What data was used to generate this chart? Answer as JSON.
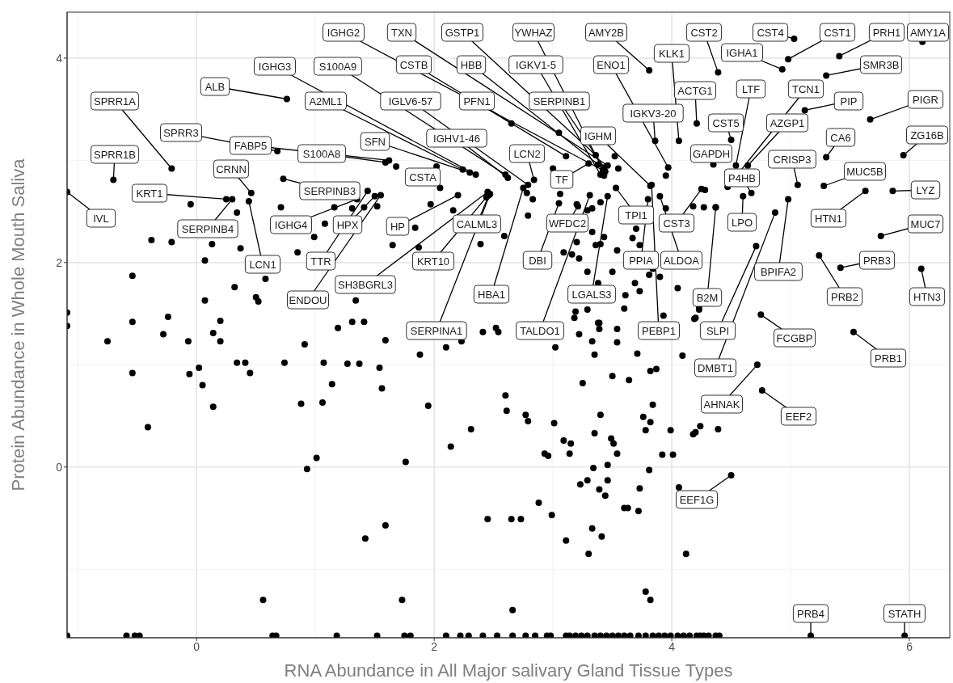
{
  "chart_data": {
    "type": "scatter",
    "xlabel": "RNA Abundance in All Major salivary Gland Tissue Types",
    "ylabel": "Protein Abundance in Whole Mouth Saliva",
    "xlim": [
      -1.09,
      6.34
    ],
    "xticks": [
      0,
      2,
      4,
      6
    ],
    "ylim": [
      -1.67,
      4.45
    ],
    "yticks": [
      0,
      2,
      4
    ],
    "grid": true,
    "marker": "circle",
    "series": [
      {
        "color": "#000000",
        "x": [
          -0.21,
          -0.7,
          -1.09,
          0.76,
          0.68,
          0.25,
          0.3,
          0.46,
          0.44,
          0.73,
          1.62,
          1.59,
          1.35,
          1.5,
          1.44,
          1.55,
          3.44,
          3.46,
          3.36,
          3.42,
          3.81,
          4.39,
          5.03,
          4.98,
          5.41,
          6.11,
          2.35,
          2.6,
          3.11,
          3.38,
          3.4,
          3.97,
          4.06,
          4.93,
          5.3,
          2.24,
          2.79,
          2.65,
          3.43,
          3.86,
          4.21,
          4.54,
          4.47,
          5.12,
          5.67,
          2.3,
          2.62,
          2.84,
          3.82,
          4.5,
          4.64,
          5.3,
          5.95,
          4.35,
          2.02,
          5.06,
          5.28,
          3.3,
          4.67,
          2.2,
          2.46,
          3.21,
          3.53,
          4.25,
          4.6,
          5.63,
          5.86,
          5.76,
          2.44,
          3.05,
          3.8,
          3.9,
          4.98,
          5.42,
          2.45,
          2.75,
          3.46,
          4.37,
          5.24,
          6.1,
          2.47,
          3.31,
          3.83,
          4.71,
          4.75,
          5.53,
          4.87,
          4.72,
          4.76,
          4.5,
          5.17,
          5.96
        ],
        "values": [
          2.92,
          2.81,
          2.69,
          3.6,
          3.09,
          2.62,
          2.62,
          2.68,
          2.6,
          2.82,
          3.0,
          2.98,
          2.62,
          2.65,
          2.7,
          2.66,
          2.89,
          2.95,
          3.05,
          2.91,
          3.88,
          3.86,
          4.19,
          3.99,
          4.02,
          4.16,
          2.86,
          2.86,
          3.04,
          2.96,
          2.86,
          2.93,
          3.19,
          3.89,
          3.83,
          2.91,
          2.76,
          3.36,
          2.93,
          3.19,
          3.36,
          2.95,
          2.74,
          3.49,
          3.4,
          2.88,
          2.83,
          2.81,
          2.75,
          3.2,
          2.95,
          3.03,
          3.05,
          2.96,
          2.94,
          2.76,
          2.75,
          2.97,
          2.68,
          2.66,
          2.66,
          2.55,
          2.73,
          2.72,
          2.65,
          2.7,
          2.7,
          2.26,
          2.64,
          2.58,
          2.62,
          2.65,
          2.62,
          1.95,
          2.69,
          2.73,
          2.65,
          2.54,
          2.07,
          1.94,
          2.67,
          2.66,
          2.76,
          2.16,
          1.49,
          1.32,
          2.49,
          1.0,
          0.75,
          -0.08,
          -1.65,
          -1.65
        ]
      },
      {
        "color": "#000000",
        "x": [
          -1.09,
          -1.09,
          -0.75,
          -0.54,
          -0.54,
          -0.41,
          -0.24,
          -0.28,
          -0.07,
          -0.06,
          0.02,
          0.05,
          0.14,
          0.2,
          0.2,
          0.14,
          0.34,
          0.41,
          0.45,
          0.74,
          0.91,
          0.88,
          1.07,
          1.06,
          1.14,
          1.01,
          0.93,
          1.19,
          1.31,
          1.41,
          1.27,
          1.37,
          1.54,
          1.56,
          1.59,
          1.59,
          1.42,
          0.56
        ],
        "values": [
          1.51,
          1.38,
          1.23,
          1.42,
          0.92,
          0.39,
          1.47,
          1.3,
          1.23,
          0.91,
          0.97,
          0.8,
          1.31,
          1.43,
          1.23,
          0.59,
          1.02,
          1.02,
          0.92,
          1.02,
          1.2,
          0.62,
          1.02,
          0.63,
          0.81,
          0.09,
          -0.02,
          1.36,
          1.42,
          1.42,
          1.01,
          1.01,
          0.97,
          0.77,
          1.24,
          -0.57,
          -0.7,
          -1.3
        ]
      },
      {
        "color": "#000000",
        "x": [
          -1.09,
          -0.59,
          -0.52,
          -0.48,
          0.64,
          0.67,
          1.18,
          1.52,
          1.75,
          1.8,
          2.1,
          2.22,
          2.29,
          2.41,
          2.53,
          2.66,
          2.77,
          2.85,
          2.95,
          2.98,
          3.11,
          3.14,
          3.19,
          3.24,
          3.29,
          3.35,
          3.4,
          3.45,
          3.5,
          3.55,
          3.6,
          3.65,
          3.72,
          3.78,
          3.84,
          3.89,
          3.94,
          3.99,
          4.05,
          4.1,
          4.15,
          4.21,
          4.27,
          4.31,
          4.37,
          4.4,
          4.24
        ],
        "values": [
          -1.65,
          -1.65,
          -1.65,
          -1.65,
          -1.65,
          -1.65,
          -1.65,
          -1.65,
          -1.65,
          -1.65,
          -1.65,
          -1.65,
          -1.65,
          -1.65,
          -1.65,
          -1.65,
          -1.65,
          -1.65,
          -1.65,
          -1.65,
          -1.65,
          -1.65,
          -1.65,
          -1.65,
          -1.65,
          -1.65,
          -1.65,
          -1.65,
          -1.65,
          -1.65,
          -1.65,
          -1.65,
          -1.65,
          -1.65,
          -1.65,
          -1.65,
          -1.65,
          -1.65,
          -1.65,
          -1.65,
          -1.65,
          -1.65,
          -1.65,
          -1.65,
          -1.65,
          -1.65,
          -1.65
        ]
      },
      {
        "color": "#000000",
        "x": [
          1.88,
          2.1,
          1.95,
          1.76,
          1.73,
          2.14,
          2.31,
          2.6,
          2.61,
          2.77,
          2.79,
          2.66,
          2.45,
          2.65,
          2.73,
          2.88,
          2.99,
          3.01,
          2.93,
          2.96,
          3.09,
          3.15,
          3.14,
          3.02,
          3.22,
          3.25,
          3.33,
          3.35,
          3.39,
          3.39,
          3.54,
          3.54,
          3.19,
          3.29,
          3.6,
          2.41,
          2.52,
          2.54,
          2.23,
          3.5,
          3.64,
          3.4,
          3.35,
          3.49,
          3.51,
          3.54,
          3.46,
          3.34,
          3.29,
          3.23,
          3.46,
          3.39,
          3.44,
          3.11,
          3.3,
          3.33,
          3.41,
          3.6,
          3.63,
          3.72,
          3.73,
          3.81,
          3.92,
          4.01,
          3.99,
          3.78,
          3.82,
          3.76,
          3.84,
          3.82,
          3.87,
          3.71,
          4.09,
          4.19,
          4.23,
          3.93,
          4.18,
          4.24,
          4.06,
          4.12,
          3.78,
          3.82
        ],
        "values": [
          1.1,
          1.17,
          0.6,
          0.05,
          -1.3,
          0.2,
          0.37,
          0.7,
          0.55,
          0.51,
          0.45,
          -1.4,
          -0.51,
          -0.51,
          -0.51,
          -0.35,
          -0.47,
          0.43,
          0.13,
          0.11,
          0.26,
          0.23,
          0.13,
          1.17,
          1.3,
          0.82,
          1.23,
          1.1,
          1.41,
          1.35,
          1.35,
          1.22,
          1.52,
          1.54,
          1.55,
          1.32,
          1.36,
          1.32,
          1.23,
          0.89,
          0.85,
          0.51,
          0.33,
          0.28,
          0.23,
          0.13,
          0.02,
          -0.01,
          -0.13,
          -0.17,
          -0.13,
          -0.22,
          -0.28,
          -0.72,
          -0.85,
          -0.6,
          -0.68,
          -0.4,
          -0.4,
          -0.43,
          -0.21,
          -0.03,
          0.12,
          0.12,
          0.36,
          0.36,
          0.44,
          0.49,
          0.61,
          0.94,
          0.96,
          1.11,
          1.09,
          1.45,
          1.54,
          1.48,
          0.32,
          0.4,
          -0.2,
          -0.85,
          -1.22,
          -1.3
        ]
      },
      {
        "color": "#000000",
        "x": [
          3.05,
          3.0,
          2.78,
          2.83,
          2.79,
          1.68,
          2.05,
          2.16,
          1.97,
          1.84,
          1.65,
          1.87,
          2.39,
          2.59,
          3.06,
          3.2,
          3.29,
          3.33,
          3.4,
          3.43,
          3.52,
          3.55,
          3.7,
          3.67,
          3.73,
          3.54,
          3.43,
          3.4,
          3.36,
          3.33,
          3.2,
          3.16,
          3.09,
          3.22,
          3.29,
          3.38,
          3.5,
          3.61,
          3.69,
          3.73,
          3.81,
          3.84,
          3.9,
          4.05,
          4.23,
          4.27,
          4.18,
          3.95,
          3.95,
          3.38,
          3.18,
          -0.05,
          0.34,
          -0.38,
          -0.21,
          0.13,
          0.37,
          0.07,
          -0.54,
          0.32,
          0.58,
          0.07,
          0.5,
          0.52,
          0.71,
          0.85,
          0.99,
          1.08,
          1.16,
          1.31,
          1.41,
          1.52,
          1.34,
          4.28,
          4.37,
          4.2,
          4.39,
          4.2
        ],
        "values": [
          3.27,
          2.92,
          2.68,
          2.62,
          2.46,
          2.94,
          2.73,
          2.51,
          2.57,
          2.34,
          2.17,
          2.15,
          2.18,
          2.26,
          2.67,
          2.57,
          2.51,
          2.53,
          2.59,
          2.85,
          3.04,
          2.92,
          2.33,
          2.24,
          2.17,
          2.12,
          2.25,
          2.18,
          2.17,
          2.3,
          2.2,
          2.08,
          2.1,
          2.04,
          1.91,
          1.8,
          1.91,
          1.68,
          1.8,
          1.72,
          1.88,
          1.94,
          1.86,
          1.75,
          1.57,
          2.54,
          2.55,
          2.53,
          2.85,
          1.41,
          1.46,
          2.57,
          2.49,
          2.22,
          2.2,
          2.18,
          2.14,
          2.02,
          1.87,
          1.76,
          1.84,
          1.63,
          1.66,
          1.62,
          2.54,
          2.1,
          2.25,
          2.38,
          2.54,
          2.53,
          2.54,
          2.55,
          1.63,
          2.71,
          2.54,
          1.46,
          0.37,
          0.34
        ]
      }
    ],
    "annotations": [
      {
        "text": "SPRR1A",
        "x": -0.21,
        "y": 2.92
      },
      {
        "text": "SPRR1B",
        "x": -0.7,
        "y": 2.81
      },
      {
        "text": "IVL",
        "x": -1.09,
        "y": 2.69
      },
      {
        "text": "ALB",
        "x": 0.76,
        "y": 3.6
      },
      {
        "text": "SPRR3",
        "x": 0.68,
        "y": 3.09
      },
      {
        "text": "KRT1",
        "x": 0.25,
        "y": 2.62
      },
      {
        "text": "SERPINB4",
        "x": 0.3,
        "y": 2.62
      },
      {
        "text": "CRNN",
        "x": 0.46,
        "y": 2.68
      },
      {
        "text": "LCN1",
        "x": 0.44,
        "y": 2.6
      },
      {
        "text": "SERPINB3",
        "x": 0.73,
        "y": 2.82
      },
      {
        "text": "FABP5",
        "x": 1.62,
        "y": 3.0
      },
      {
        "text": "S100A8",
        "x": 1.59,
        "y": 2.98
      },
      {
        "text": "IGHG4",
        "x": 1.35,
        "y": 2.62
      },
      {
        "text": "HPX",
        "x": 1.5,
        "y": 2.65
      },
      {
        "text": "TTR",
        "x": 1.44,
        "y": 2.7
      },
      {
        "text": "ENDOU",
        "x": 1.55,
        "y": 2.66
      },
      {
        "text": "IGHG2",
        "x": 3.44,
        "y": 2.89
      },
      {
        "text": "TXN",
        "x": 3.46,
        "y": 2.95
      },
      {
        "text": "GSTP1",
        "x": 3.36,
        "y": 3.05
      },
      {
        "text": "YWHAZ",
        "x": 3.42,
        "y": 2.91
      },
      {
        "text": "AMY2B",
        "x": 3.81,
        "y": 3.88
      },
      {
        "text": "CST2",
        "x": 4.39,
        "y": 3.86
      },
      {
        "text": "CST4",
        "x": 5.03,
        "y": 4.19
      },
      {
        "text": "CST1",
        "x": 4.98,
        "y": 3.99
      },
      {
        "text": "PRH1",
        "x": 5.41,
        "y": 4.02
      },
      {
        "text": "AMY1A",
        "x": 6.11,
        "y": 4.16
      },
      {
        "text": "IGHG3",
        "x": 2.35,
        "y": 2.86
      },
      {
        "text": "S100A9",
        "x": 2.6,
        "y": 2.86
      },
      {
        "text": "CSTB",
        "x": 3.11,
        "y": 3.04
      },
      {
        "text": "HBB",
        "x": 3.38,
        "y": 2.96
      },
      {
        "text": "IGKV1-5",
        "x": 3.4,
        "y": 2.86
      },
      {
        "text": "ENO1",
        "x": 3.97,
        "y": 2.93
      },
      {
        "text": "KLK1",
        "x": 4.06,
        "y": 3.19
      },
      {
        "text": "IGHA1",
        "x": 4.93,
        "y": 3.89
      },
      {
        "text": "SMR3B",
        "x": 5.3,
        "y": 3.83
      },
      {
        "text": "A2ML1",
        "x": 2.24,
        "y": 2.91
      },
      {
        "text": "IGLV6-57",
        "x": 2.79,
        "y": 2.76
      },
      {
        "text": "PFN1",
        "x": 2.65,
        "y": 3.36
      },
      {
        "text": "SERPINB1",
        "x": 3.43,
        "y": 2.93
      },
      {
        "text": "IGKV3-20",
        "x": 3.86,
        "y": 3.19
      },
      {
        "text": "ACTG1",
        "x": 4.21,
        "y": 3.36
      },
      {
        "text": "LTF",
        "x": 4.54,
        "y": 2.95
      },
      {
        "text": "TCN1",
        "x": 4.47,
        "y": 2.74
      },
      {
        "text": "PIP",
        "x": 5.12,
        "y": 3.49
      },
      {
        "text": "PIGR",
        "x": 5.67,
        "y": 3.4
      },
      {
        "text": "SFN",
        "x": 2.3,
        "y": 2.88
      },
      {
        "text": "IGHV1-46",
        "x": 2.62,
        "y": 2.83
      },
      {
        "text": "LCN2",
        "x": 2.84,
        "y": 2.81
      },
      {
        "text": "IGHM",
        "x": 3.82,
        "y": 2.75
      },
      {
        "text": "CST5",
        "x": 4.5,
        "y": 3.2
      },
      {
        "text": "AZGP1",
        "x": 4.64,
        "y": 2.95
      },
      {
        "text": "CA6",
        "x": 5.3,
        "y": 3.03
      },
      {
        "text": "ZG16B",
        "x": 5.95,
        "y": 3.05
      },
      {
        "text": "GAPDH",
        "x": 4.35,
        "y": 2.96
      },
      {
        "text": "CSTA",
        "x": 2.02,
        "y": 2.94
      },
      {
        "text": "CRISP3",
        "x": 5.06,
        "y": 2.76
      },
      {
        "text": "MUC5B",
        "x": 5.28,
        "y": 2.75
      },
      {
        "text": "TF",
        "x": 3.3,
        "y": 2.97
      },
      {
        "text": "P4HB",
        "x": 4.67,
        "y": 2.68
      },
      {
        "text": "HP",
        "x": 2.2,
        "y": 2.66
      },
      {
        "text": "CALML3",
        "x": 2.46,
        "y": 2.66
      },
      {
        "text": "WFDC2",
        "x": 3.21,
        "y": 2.55
      },
      {
        "text": "TPI1",
        "x": 3.53,
        "y": 2.73
      },
      {
        "text": "CST3",
        "x": 4.25,
        "y": 2.72
      },
      {
        "text": "LPO",
        "x": 4.6,
        "y": 2.65
      },
      {
        "text": "HTN1",
        "x": 5.63,
        "y": 2.7
      },
      {
        "text": "LYZ",
        "x": 5.86,
        "y": 2.7
      },
      {
        "text": "MUC7",
        "x": 5.76,
        "y": 2.26
      },
      {
        "text": "KRT10",
        "x": 2.44,
        "y": 2.64
      },
      {
        "text": "DBI",
        "x": 3.05,
        "y": 2.58
      },
      {
        "text": "PPIA",
        "x": 3.8,
        "y": 2.62
      },
      {
        "text": "ALDOA",
        "x": 3.9,
        "y": 2.65
      },
      {
        "text": "BPIFA2",
        "x": 4.98,
        "y": 2.62
      },
      {
        "text": "PRB3",
        "x": 5.42,
        "y": 1.95
      },
      {
        "text": "SH3BGRL3",
        "x": 2.45,
        "y": 2.69
      },
      {
        "text": "HBA1",
        "x": 2.75,
        "y": 2.73
      },
      {
        "text": "LGALS3",
        "x": 3.46,
        "y": 2.65
      },
      {
        "text": "B2M",
        "x": 4.37,
        "y": 2.54
      },
      {
        "text": "PRB2",
        "x": 5.24,
        "y": 2.07
      },
      {
        "text": "HTN3",
        "x": 6.1,
        "y": 1.94
      },
      {
        "text": "SERPINA1",
        "x": 2.47,
        "y": 2.67
      },
      {
        "text": "TALDO1",
        "x": 3.31,
        "y": 2.66
      },
      {
        "text": "PEBP1",
        "x": 3.83,
        "y": 2.76
      },
      {
        "text": "SLPI",
        "x": 4.71,
        "y": 2.16
      },
      {
        "text": "FCGBP",
        "x": 4.75,
        "y": 1.49
      },
      {
        "text": "PRB1",
        "x": 5.53,
        "y": 1.32
      },
      {
        "text": "DMBT1",
        "x": 4.87,
        "y": 2.49
      },
      {
        "text": "AHNAK",
        "x": 4.72,
        "y": 1.0
      },
      {
        "text": "EEF2",
        "x": 4.76,
        "y": 0.75
      },
      {
        "text": "EEF1G",
        "x": 4.5,
        "y": -0.08
      },
      {
        "text": "PRB4",
        "x": 5.17,
        "y": -1.65
      },
      {
        "text": "STATH",
        "x": 5.96,
        "y": -1.65
      }
    ]
  }
}
